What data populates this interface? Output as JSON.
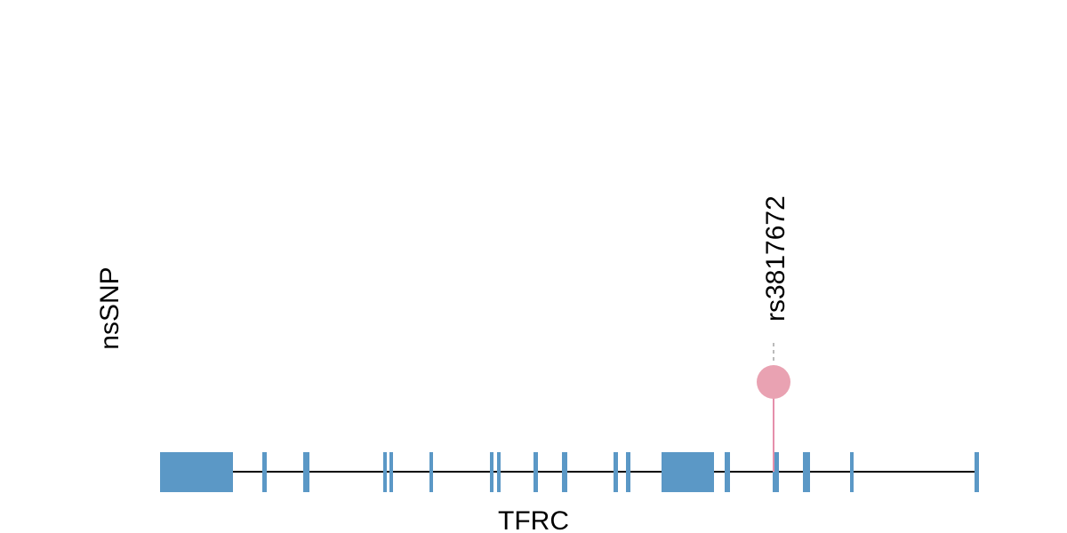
{
  "track_label": "nsSNP",
  "snp": {
    "label": "rs3817672"
  },
  "gene": {
    "label": "TFRC"
  }
}
